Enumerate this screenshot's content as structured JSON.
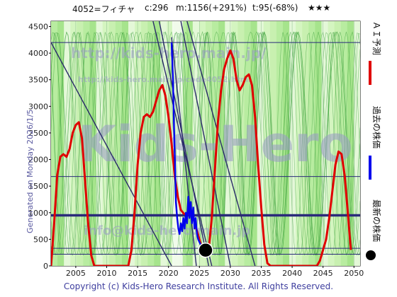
{
  "header": {
    "code_name": "4052=フィチャ",
    "current": "c:296",
    "max": "m:1156(+291%)",
    "target": "t:95(-68%)",
    "stars": "★★★"
  },
  "side_text": "Generated on Monday 2026/1/5.",
  "copyright": "Copyright (c) Kids-Hero Research Institute. All Rights Reserved.",
  "watermarks": {
    "url1": "http://kids-hero.main.jp/",
    "url2": "http://kids-hero.main.jp/code4052.html",
    "email": "info@kids-hero.main.jp",
    "big": "Kids-Hero"
  },
  "legend": [
    {
      "label": "ＡＩ予測",
      "color": "#e00000"
    },
    {
      "label": "過去の株価",
      "color": "#0000ee"
    },
    {
      "label": "最新の株価",
      "color": "#000000"
    }
  ],
  "chart_data": {
    "type": "line",
    "xlim": [
      2001,
      2051
    ],
    "ylim": [
      0,
      4600
    ],
    "x_ticks": [
      2005,
      2010,
      2015,
      2020,
      2025,
      2030,
      2035,
      2040,
      2045,
      2050
    ],
    "y_ticks": [
      0,
      500,
      1000,
      1500,
      2000,
      2500,
      3000,
      3500,
      4000,
      4500
    ],
    "horizontal_lines": [
      4200,
      1680,
      960,
      940,
      330,
      220
    ],
    "trend_lines": [
      {
        "x": [
          2017.5,
          2027.0
        ],
        "y": [
          4600,
          0
        ]
      },
      {
        "x": [
          2018.5,
          2026.5
        ],
        "y": [
          4600,
          0
        ]
      },
      {
        "x": [
          2020.5,
          2024.5
        ],
        "y": [
          4300,
          0
        ]
      },
      {
        "x": [
          2022.0,
          2030.0
        ],
        "y": [
          4600,
          0
        ]
      },
      {
        "x": [
          2023.0,
          2034.0
        ],
        "y": [
          4600,
          0
        ]
      },
      {
        "x": [
          2001.0,
          2020.5
        ],
        "y": [
          4200,
          0
        ]
      }
    ],
    "series": [
      {
        "name": "ＡＩ予測",
        "color": "#e00000",
        "x": [
          2001.0,
          2001.5,
          2002.0,
          2002.5,
          2003.0,
          2003.5,
          2004.0,
          2004.5,
          2005.0,
          2005.5,
          2006.0,
          2006.5,
          2007.0,
          2007.5,
          2008.0,
          2008.5,
          2010.0,
          2012.0,
          2013.5,
          2014.0,
          2014.5,
          2015.0,
          2015.5,
          2016.0,
          2016.5,
          2017.0,
          2017.5,
          2018.0,
          2018.5,
          2019.0,
          2019.5,
          2020.0,
          2020.5,
          2021.0,
          2021.5,
          2022.0,
          2022.5,
          2023.0,
          2023.5,
          2024.0,
          2024.5,
          2025.0,
          2025.5,
          2026.0,
          2026.5,
          2027.0,
          2027.5,
          2028.0,
          2028.5,
          2029.0,
          2029.5,
          2030.0,
          2030.5,
          2031.0,
          2031.5,
          2032.0,
          2032.5,
          2033.0,
          2033.5,
          2034.0,
          2034.5,
          2035.0,
          2035.5,
          2036.0,
          2036.5,
          2037.0,
          2037.5,
          2038.0,
          2044.0,
          2044.5,
          2045.0,
          2045.5,
          2046.0,
          2046.5,
          2047.0,
          2047.5,
          2048.0,
          2048.5,
          2049.0,
          2049.5
        ],
        "y": [
          0,
          800,
          1700,
          2050,
          2100,
          2050,
          2200,
          2500,
          2650,
          2700,
          2400,
          1600,
          800,
          200,
          0,
          0,
          0,
          0,
          0,
          300,
          1000,
          1900,
          2500,
          2800,
          2850,
          2800,
          2900,
          3100,
          3300,
          3400,
          3200,
          2800,
          2300,
          1700,
          1300,
          1050,
          980,
          950,
          1000,
          900,
          700,
          500,
          300,
          200,
          300,
          900,
          1800,
          2700,
          3300,
          3700,
          3900,
          4050,
          3900,
          3500,
          3300,
          3400,
          3550,
          3600,
          3400,
          2800,
          1900,
          1100,
          400,
          50,
          0,
          0,
          0,
          0,
          0,
          100,
          300,
          500,
          900,
          1400,
          1900,
          2150,
          2100,
          1700,
          1000,
          300
        ]
      },
      {
        "name": "過去の株価",
        "color": "#0000ee",
        "x": [
          2020.5,
          2020.7,
          2020.9,
          2021.1,
          2021.2,
          2021.4,
          2021.6,
          2021.8,
          2022.0,
          2022.2,
          2022.4,
          2022.6,
          2022.8,
          2023.0,
          2023.2,
          2023.4,
          2023.6,
          2023.8,
          2024.0,
          2024.2,
          2024.4,
          2024.6,
          2024.8,
          2025.0,
          2025.2,
          2025.4,
          2025.6,
          2025.8,
          2026.0
        ],
        "y": [
          4200,
          3600,
          2600,
          1700,
          1200,
          900,
          700,
          600,
          800,
          650,
          900,
          700,
          1000,
          800,
          1300,
          900,
          1200,
          800,
          1100,
          700,
          900,
          600,
          500,
          450,
          400,
          350,
          320,
          310,
          296
        ]
      }
    ],
    "latest_point": {
      "x": 2026.0,
      "y": 296
    }
  }
}
